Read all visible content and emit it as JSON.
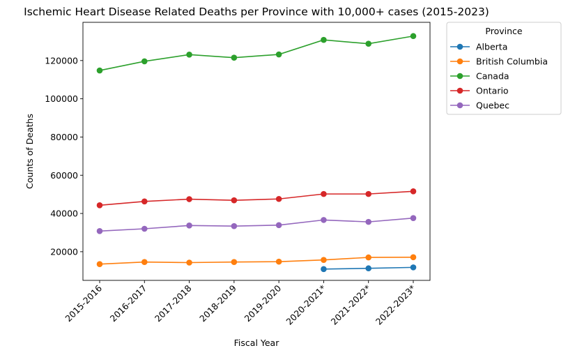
{
  "chart_data": {
    "type": "line",
    "title": "Ischemic Heart Disease Related Deaths per Province with 10,000+ cases (2015-2023)",
    "xlabel": "Fiscal Year",
    "ylabel": "Counts of Deaths",
    "categories": [
      "2015-2016",
      "2016-2017",
      "2017-2018",
      "2018-2019",
      "2019-2020",
      "2020-2021*",
      "2021-2022*",
      "2022-2023*"
    ],
    "ylim": [
      5000,
      140000
    ],
    "yticks": [
      20000,
      40000,
      60000,
      80000,
      100000,
      120000
    ],
    "grid": false,
    "legend": {
      "title": "Province",
      "placement": "outside top-right"
    },
    "series": [
      {
        "name": "Alberta",
        "color": "#1f77b4",
        "values": [
          null,
          null,
          null,
          null,
          null,
          10900,
          11300,
          11800
        ]
      },
      {
        "name": "British Columbia",
        "color": "#ff7f0e",
        "values": [
          13500,
          14600,
          14300,
          14600,
          14800,
          15700,
          17000,
          17100
        ]
      },
      {
        "name": "Canada",
        "color": "#2ca02c",
        "values": [
          114800,
          119600,
          123100,
          121500,
          123200,
          130800,
          128800,
          132800
        ]
      },
      {
        "name": "Ontario",
        "color": "#d62728",
        "values": [
          44300,
          46300,
          47500,
          46900,
          47600,
          50200,
          50200,
          51600
        ]
      },
      {
        "name": "Quebec",
        "color": "#9467bd",
        "values": [
          30800,
          32000,
          33700,
          33400,
          33900,
          36600,
          35600,
          37600
        ]
      }
    ]
  }
}
